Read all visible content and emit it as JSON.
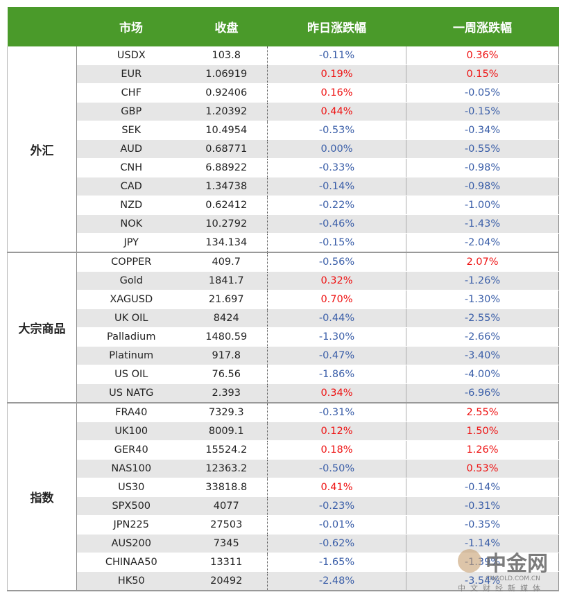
{
  "table": {
    "headers": [
      "市场",
      "收盘",
      "昨日涨跌幅",
      "一周涨跌幅"
    ],
    "groups": [
      {
        "name": "外汇",
        "rows": [
          [
            "USDX",
            "103.8",
            "-0.11%",
            "0.36%"
          ],
          [
            "EUR",
            "1.06919",
            "0.19%",
            "0.15%"
          ],
          [
            "CHF",
            "0.92406",
            "0.16%",
            "-0.05%"
          ],
          [
            "GBP",
            "1.20392",
            "0.44%",
            "-0.15%"
          ],
          [
            "SEK",
            "10.4954",
            "-0.53%",
            "-0.34%"
          ],
          [
            "AUD",
            "0.68771",
            "0.00%",
            "-0.55%"
          ],
          [
            "CNH",
            "6.88922",
            "-0.33%",
            "-0.98%"
          ],
          [
            "CAD",
            "1.34738",
            "-0.14%",
            "-0.98%"
          ],
          [
            "NZD",
            "0.62412",
            "-0.22%",
            "-1.00%"
          ],
          [
            "NOK",
            "10.2792",
            "-0.46%",
            "-1.43%"
          ],
          [
            "JPY",
            "134.134",
            "-0.15%",
            "-2.04%"
          ]
        ]
      },
      {
        "name": "大宗商品",
        "rows": [
          [
            "COPPER",
            "409.7",
            "-0.56%",
            "2.07%"
          ],
          [
            "Gold",
            "1841.7",
            "0.32%",
            "-1.26%"
          ],
          [
            "XAGUSD",
            "21.697",
            "0.70%",
            "-1.30%"
          ],
          [
            "UK OIL",
            "8424",
            "-0.44%",
            "-2.55%"
          ],
          [
            "Palladium",
            "1480.59",
            "-1.30%",
            "-2.66%"
          ],
          [
            "Platinum",
            "917.8",
            "-0.47%",
            "-3.40%"
          ],
          [
            "US OIL",
            "76.56",
            "-1.86%",
            "-4.00%"
          ],
          [
            "US NATG",
            "2.393",
            "0.34%",
            "-6.96%"
          ]
        ]
      },
      {
        "name": "指数",
        "rows": [
          [
            "FRA40",
            "7329.3",
            "-0.31%",
            "2.55%"
          ],
          [
            "UK100",
            "8009.1",
            "0.12%",
            "1.50%"
          ],
          [
            "GER40",
            "15524.2",
            "0.18%",
            "1.26%"
          ],
          [
            "NAS100",
            "12363.2",
            "-0.50%",
            "0.53%"
          ],
          [
            "US30",
            "33818.8",
            "0.41%",
            "-0.14%"
          ],
          [
            "SPX500",
            "4077",
            "-0.23%",
            "-0.31%"
          ],
          [
            "JPN225",
            "27503",
            "-0.01%",
            "-0.35%"
          ],
          [
            "AUS200",
            "7345",
            "-0.62%",
            "-1.14%"
          ],
          [
            "CHINAA50",
            "13311",
            "-1.65%",
            "-1.39%"
          ],
          [
            "HK50",
            "20492",
            "-2.48%",
            "-3.54%"
          ]
        ]
      }
    ]
  },
  "watermark": {
    "logo": "中金网",
    "site": "CNGOLD.COM.CN",
    "slogan": "中文财经新媒体"
  }
}
